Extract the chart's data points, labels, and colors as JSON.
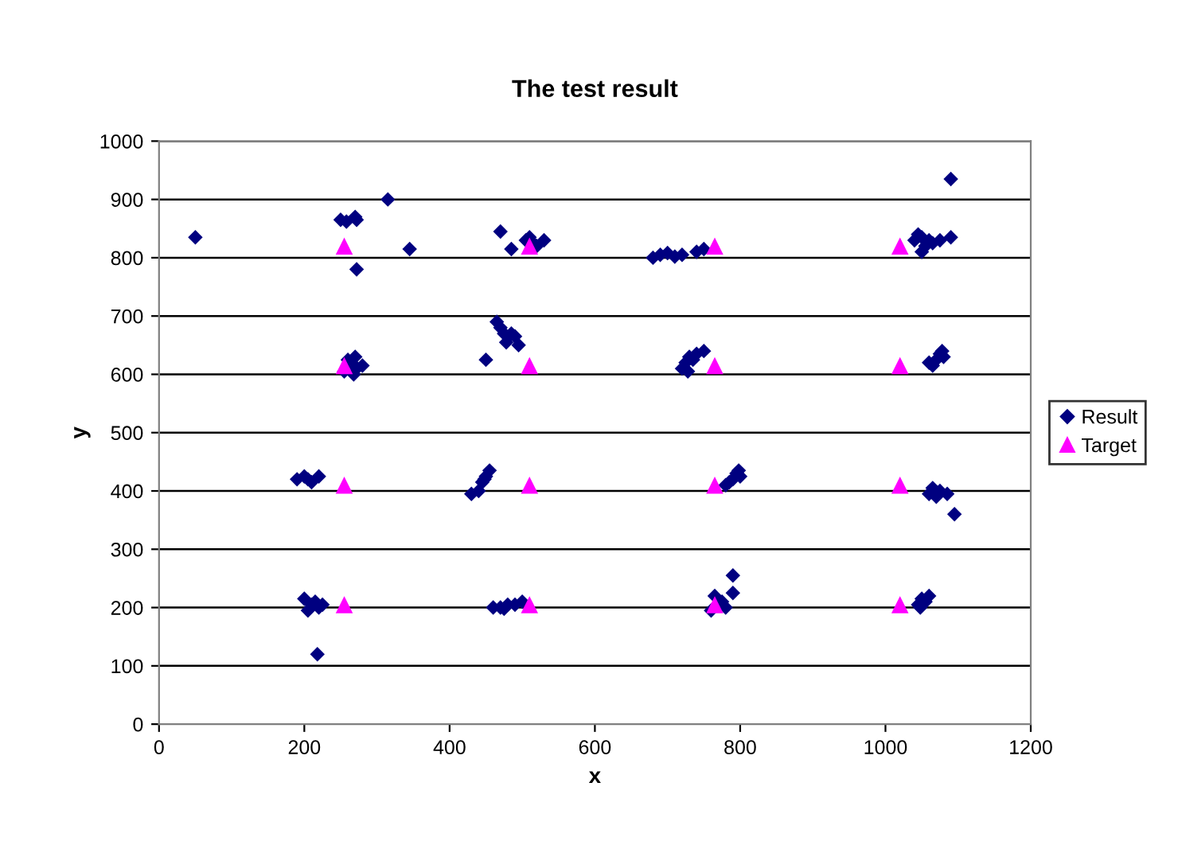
{
  "chart_data": {
    "type": "scatter",
    "title": "The test result",
    "xlabel": "x",
    "ylabel": "y",
    "xlim": [
      0,
      1200
    ],
    "xticks": [
      0,
      200,
      400,
      600,
      800,
      1000,
      1200
    ],
    "ylim": [
      0,
      1000
    ],
    "yticks": [
      0,
      100,
      200,
      300,
      400,
      500,
      600,
      700,
      800,
      900,
      1000
    ],
    "grid": "y",
    "legend": "right",
    "series": [
      {
        "name": "Result",
        "color": "#000080",
        "marker": "diamond",
        "x": [
          50,
          250,
          258,
          270,
          272,
          272,
          315,
          345,
          470,
          485,
          505,
          510,
          515,
          530,
          520,
          680,
          690,
          700,
          710,
          720,
          740,
          750,
          1040,
          1045,
          1050,
          1055,
          1060,
          1065,
          1075,
          1090,
          1090,
          1050,
          260,
          265,
          270,
          272,
          280,
          255,
          268,
          450,
          465,
          470,
          475,
          485,
          490,
          495,
          478,
          720,
          725,
          730,
          740,
          750,
          735,
          728,
          1060,
          1070,
          1075,
          1080,
          1065,
          1078,
          190,
          200,
          210,
          220,
          205,
          430,
          440,
          445,
          450,
          455,
          448,
          780,
          790,
          795,
          800,
          785,
          798,
          1060,
          1065,
          1075,
          1085,
          1095,
          1070,
          200,
          210,
          215,
          220,
          205,
          225,
          218,
          460,
          470,
          480,
          490,
          500,
          475,
          760,
          765,
          775,
          780,
          790,
          790,
          1045,
          1050,
          1055,
          1060,
          1048
        ],
        "values": [
          835,
          865,
          862,
          870,
          865,
          780,
          900,
          815,
          845,
          815,
          830,
          835,
          825,
          830,
          820,
          800,
          805,
          808,
          802,
          805,
          810,
          815,
          830,
          840,
          835,
          820,
          830,
          825,
          830,
          835,
          935,
          810,
          625,
          620,
          630,
          610,
          615,
          605,
          600,
          625,
          690,
          680,
          670,
          670,
          665,
          650,
          655,
          610,
          620,
          630,
          635,
          640,
          625,
          605,
          620,
          625,
          635,
          630,
          615,
          640,
          420,
          425,
          415,
          425,
          420,
          395,
          400,
          415,
          425,
          435,
          420,
          410,
          420,
          430,
          425,
          415,
          435,
          395,
          405,
          400,
          395,
          360,
          390,
          215,
          205,
          210,
          200,
          195,
          205,
          120,
          200,
          200,
          205,
          205,
          210,
          198,
          195,
          220,
          210,
          200,
          225,
          255,
          205,
          215,
          210,
          220,
          200
        ]
      },
      {
        "name": "Target",
        "color": "#ff00ff",
        "marker": "triangle",
        "x": [
          255,
          510,
          765,
          1020,
          255,
          510,
          765,
          1020,
          255,
          510,
          765,
          1020,
          255,
          510,
          765,
          1020
        ],
        "values": [
          820,
          820,
          820,
          820,
          615,
          615,
          615,
          615,
          410,
          410,
          410,
          410,
          205,
          205,
          205,
          205
        ]
      }
    ]
  }
}
